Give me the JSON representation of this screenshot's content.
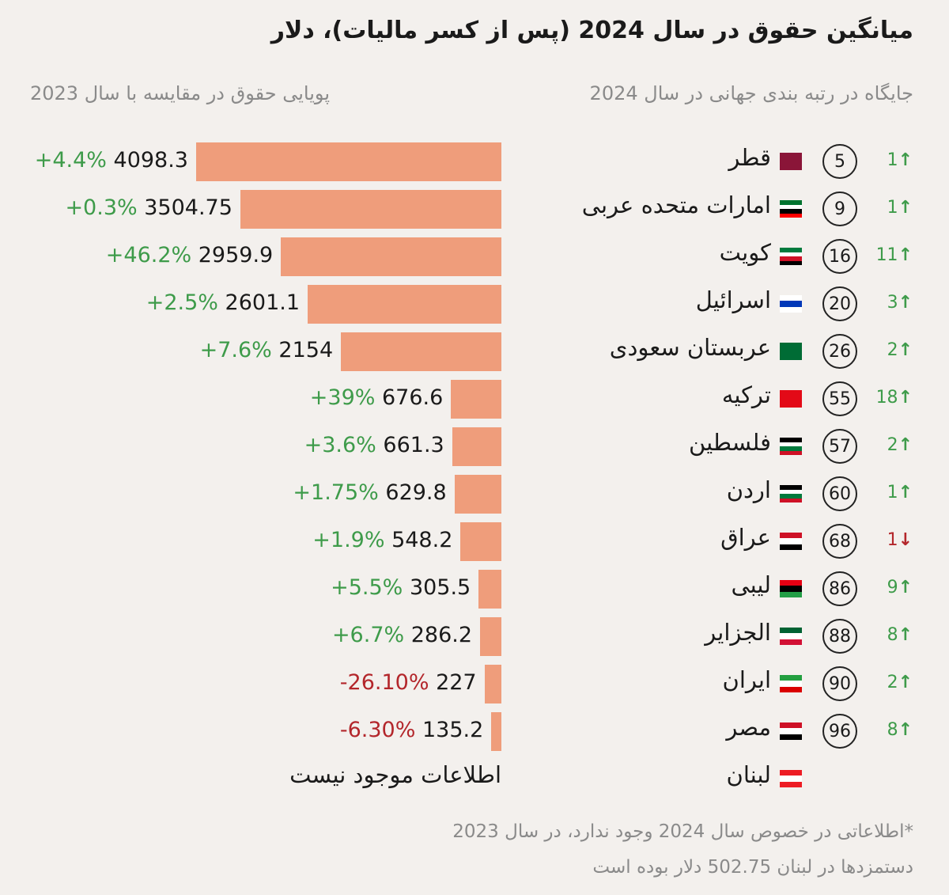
{
  "title": "میانگین حقوق در سال 2024 (پس از کسر مالیات)، دلار",
  "subtitle_left": "پویایی حقوق در مقایسه با سال 2023",
  "subtitle_right": "جایگاه در رتبه بندی جهانی در سال 2024",
  "no_data_label": "اطلاعات موجود نیست",
  "footnote": [
    "*اطلاعاتی در خصوص سال 2024 وجود ندارد، در سال 2023",
    "دستمزدها در لبنان 502.75 دلار بوده است"
  ],
  "colors": {
    "bar": "#ef9d7b",
    "up": "#3e9b4a",
    "down": "#b3262b",
    "background": "#f3f0ed"
  },
  "chart_data": {
    "type": "bar",
    "orientation": "horizontal",
    "categories": [
      "قطر",
      "امارات متحده عربی",
      "کویت",
      "اسرائیل",
      "عربستان سعودی",
      "ترکیه",
      "فلسطین",
      "اردن",
      "عراق",
      "لیبی",
      "الجزایر",
      "ایران",
      "مصر",
      "لبنان"
    ],
    "values": [
      4098.3,
      3504.75,
      2959.9,
      2601.1,
      2154,
      676.6,
      661.3,
      629.8,
      548.2,
      305.5,
      286.2,
      227,
      135.2,
      null
    ],
    "value_labels": [
      "4098.3",
      "3504.75",
      "2959.9",
      "2601.1",
      "2154",
      "676.6",
      "661.3",
      "629.8",
      "548.2",
      "305.5",
      "286.2",
      "227",
      "135.2",
      null
    ],
    "change_vs_2023": [
      "+4.4%",
      "+0.3%",
      "+46.2%",
      "+2.5%",
      "+7.6%",
      "+39%",
      "+3.6%",
      "+1.75%",
      "+1.9%",
      "+5.5%",
      "+6.7%",
      "-26.10%",
      "-6.30%",
      null
    ],
    "world_rank_2024": [
      "5",
      "9",
      "16",
      "20",
      "26",
      "55",
      "57",
      "60",
      "68",
      "86",
      "88",
      "90",
      "96",
      null
    ],
    "rank_change": [
      {
        "n": "1",
        "dir": "up"
      },
      {
        "n": "1",
        "dir": "up"
      },
      {
        "n": "11",
        "dir": "up"
      },
      {
        "n": "3",
        "dir": "up"
      },
      {
        "n": "2",
        "dir": "up"
      },
      {
        "n": "18",
        "dir": "up"
      },
      {
        "n": "2",
        "dir": "up"
      },
      {
        "n": "1",
        "dir": "up"
      },
      {
        "n": "1",
        "dir": "down"
      },
      {
        "n": "9",
        "dir": "up"
      },
      {
        "n": "8",
        "dir": "up"
      },
      {
        "n": "2",
        "dir": "up"
      },
      {
        "n": "8",
        "dir": "up"
      },
      null
    ],
    "flags": [
      [
        "#8a1538"
      ],
      [
        "#00732f",
        "#ffffff",
        "#000000",
        "#ff0000"
      ],
      [
        "#007a3d",
        "#ffffff",
        "#ce1126",
        "#000000"
      ],
      [
        "#ffffff",
        "#0038b8",
        "#ffffff"
      ],
      [
        "#006c35"
      ],
      [
        "#e30a17"
      ],
      [
        "#000000",
        "#ffffff",
        "#007a3d",
        "#ce1126"
      ],
      [
        "#000000",
        "#ffffff",
        "#007a3d",
        "#ce1126"
      ],
      [
        "#ce1126",
        "#ffffff",
        "#000000"
      ],
      [
        "#e70013",
        "#000000",
        "#239e46"
      ],
      [
        "#006233",
        "#ffffff",
        "#d21034"
      ],
      [
        "#239f40",
        "#ffffff",
        "#da0000"
      ],
      [
        "#ce1126",
        "#ffffff",
        "#000000"
      ],
      [
        "#ed1c24",
        "#ffffff",
        "#ed1c24"
      ]
    ]
  }
}
